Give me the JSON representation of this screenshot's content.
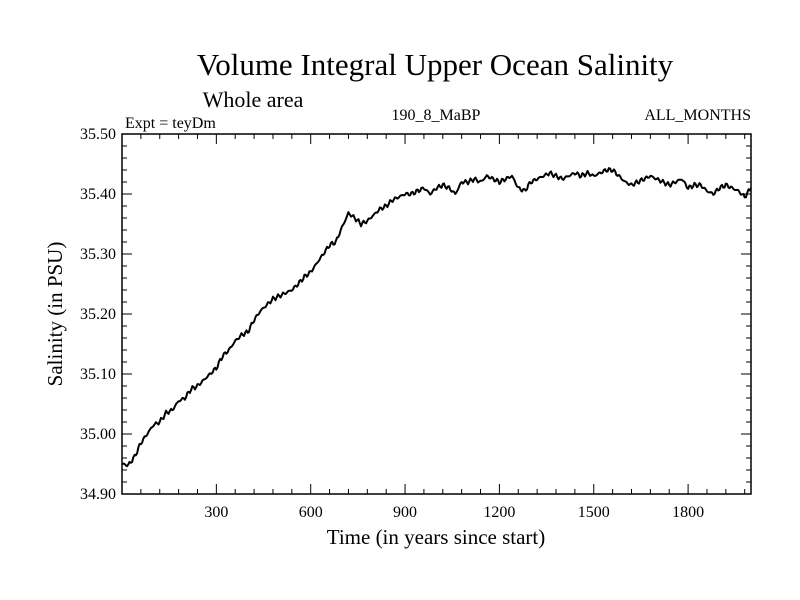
{
  "chart_data": {
    "type": "line",
    "title": "Volume Integral Upper Ocean Salinity",
    "subtitle": "Whole area",
    "left_label": "Expt = teyDm",
    "center_label": "190_8_MaBP",
    "right_label": "ALL_MONTHS",
    "xlabel": "Time (in years since start)",
    "ylabel": "Salinity (in PSU)",
    "xlim": [
      0,
      2000
    ],
    "ylim": [
      34.9,
      35.5
    ],
    "x_ticks": [
      300,
      600,
      900,
      1200,
      1500,
      1800
    ],
    "x_tick_labels": [
      "300",
      "600",
      "900",
      "1200",
      "1500",
      "1800"
    ],
    "y_ticks": [
      34.9,
      35.0,
      35.1,
      35.2,
      35.3,
      35.4,
      35.5
    ],
    "y_tick_labels": [
      "34.90",
      "35.00",
      "35.10",
      "35.20",
      "35.30",
      "35.40",
      "35.50"
    ],
    "grid": false,
    "series": [
      {
        "name": "salinity",
        "color": "#000000",
        "x": [
          0,
          20,
          40,
          60,
          80,
          100,
          120,
          140,
          160,
          180,
          200,
          220,
          240,
          260,
          280,
          300,
          320,
          340,
          360,
          380,
          400,
          420,
          440,
          460,
          480,
          500,
          520,
          540,
          560,
          580,
          600,
          620,
          640,
          660,
          680,
          700,
          720,
          740,
          760,
          780,
          800,
          820,
          840,
          860,
          880,
          900,
          920,
          940,
          960,
          980,
          1000,
          1020,
          1040,
          1060,
          1080,
          1100,
          1120,
          1140,
          1160,
          1180,
          1200,
          1220,
          1240,
          1260,
          1280,
          1300,
          1320,
          1340,
          1360,
          1380,
          1400,
          1420,
          1440,
          1460,
          1480,
          1500,
          1520,
          1540,
          1560,
          1580,
          1600,
          1620,
          1640,
          1660,
          1680,
          1700,
          1720,
          1740,
          1760,
          1780,
          1800,
          1820,
          1840,
          1860,
          1880,
          1900,
          1920,
          1940,
          1960,
          1980,
          2000
        ],
        "values": [
          34.95,
          34.948,
          34.962,
          34.985,
          35.0,
          35.015,
          35.02,
          35.035,
          35.04,
          35.055,
          35.06,
          35.075,
          35.08,
          35.09,
          35.1,
          35.11,
          35.13,
          35.14,
          35.155,
          35.165,
          35.17,
          35.19,
          35.205,
          35.215,
          35.225,
          35.23,
          35.235,
          35.24,
          35.25,
          35.262,
          35.27,
          35.285,
          35.3,
          35.315,
          35.32,
          35.345,
          35.368,
          35.36,
          35.35,
          35.355,
          35.365,
          35.375,
          35.38,
          35.39,
          35.395,
          35.4,
          35.4,
          35.405,
          35.41,
          35.4,
          35.41,
          35.415,
          35.41,
          35.4,
          35.42,
          35.42,
          35.425,
          35.42,
          35.43,
          35.425,
          35.42,
          35.425,
          35.43,
          35.41,
          35.405,
          35.42,
          35.425,
          35.43,
          35.435,
          35.43,
          35.425,
          35.43,
          35.435,
          35.43,
          35.435,
          35.43,
          35.435,
          35.44,
          35.44,
          35.43,
          35.42,
          35.415,
          35.42,
          35.425,
          35.43,
          35.425,
          35.42,
          35.415,
          35.42,
          35.425,
          35.41,
          35.415,
          35.415,
          35.405,
          35.4,
          35.41,
          35.415,
          35.41,
          35.405,
          35.395,
          35.41
        ]
      }
    ]
  }
}
